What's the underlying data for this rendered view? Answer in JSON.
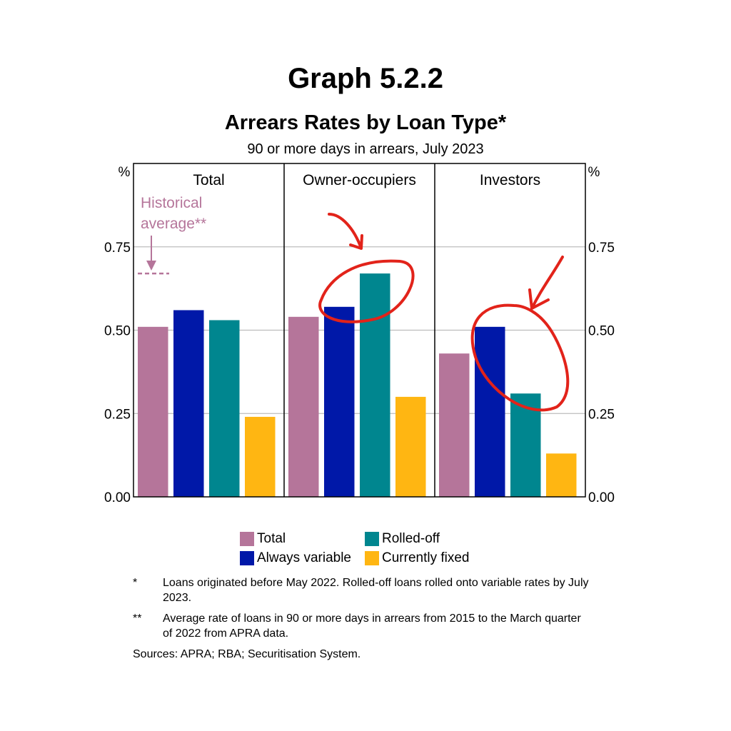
{
  "graph_label": "Graph 5.2.2",
  "chart_data": {
    "type": "bar",
    "title": "Arrears Rates by Loan Type*",
    "subtitle": "90 or more days in arrears, July 2023",
    "y_unit": "%",
    "ylim": [
      0,
      1.0
    ],
    "yticks": [
      "0.00",
      "0.25",
      "0.50",
      "0.75"
    ],
    "grid": true,
    "panels": [
      "Total",
      "Owner-occupiers",
      "Investors"
    ],
    "series": [
      {
        "name": "Total",
        "color": "#b5759a",
        "values": [
          0.51,
          0.54,
          0.43
        ]
      },
      {
        "name": "Always variable",
        "color": "#0018a8",
        "values": [
          0.56,
          0.57,
          0.51
        ]
      },
      {
        "name": "Rolled-off",
        "color": "#00868f",
        "values": [
          0.53,
          0.67,
          0.31
        ]
      },
      {
        "name": "Currently fixed",
        "color": "#ffb612",
        "values": [
          0.24,
          0.3,
          0.13
        ]
      }
    ],
    "annotation": {
      "text_line1": "Historical",
      "text_line2": "average**",
      "panel": "Total",
      "value": 0.67,
      "color": "#b5759a"
    },
    "legend_position": "bottom"
  },
  "notes": [
    {
      "mark": "*",
      "text": "Loans originated before May 2022. Rolled-off loans rolled onto variable rates by July 2023."
    },
    {
      "mark": "**",
      "text": "Average rate of loans in 90 or more days in arrears from 2015 to the March quarter of 2022 from APRA data."
    }
  ],
  "sources": "Sources: APRA; RBA; Securitisation System.",
  "handwriting_color": "#e2231a"
}
